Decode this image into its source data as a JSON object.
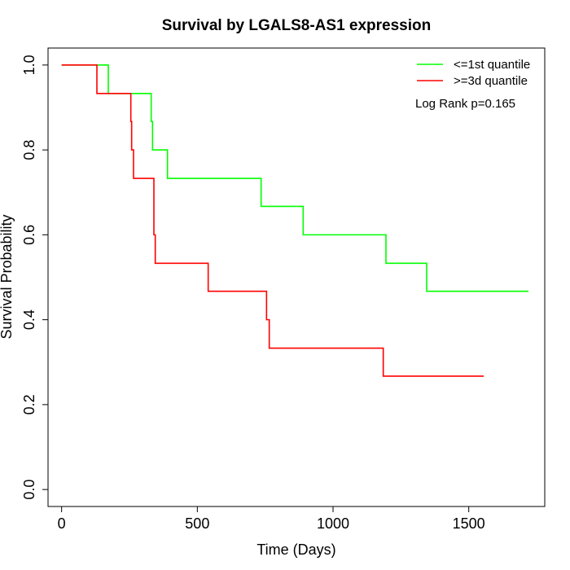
{
  "chart_data": {
    "type": "line",
    "title": "Survival by LGALS8-AS1 expression",
    "xlabel": "Time (Days)",
    "ylabel": "Survival Probability",
    "xlim": [
      -50,
      1780
    ],
    "ylim": [
      -0.04,
      1.04
    ],
    "x_ticks": [
      0,
      500,
      1000,
      1500
    ],
    "x_tick_labels": [
      "0",
      "500",
      "1000",
      "1500"
    ],
    "y_ticks": [
      0.0,
      0.2,
      0.4,
      0.6,
      0.8,
      1.0
    ],
    "y_tick_labels": [
      "0.0",
      "0.2",
      "0.4",
      "0.6",
      "0.8",
      "1.0"
    ],
    "grid": false,
    "legend_position": "top-right",
    "annotation": "Log Rank p=0.165",
    "series": [
      {
        "name": "<=1st quantile",
        "color": "#00ff00",
        "steps": [
          [
            0,
            1.0
          ],
          [
            172,
            0.933
          ],
          [
            330,
            0.867
          ],
          [
            335,
            0.8
          ],
          [
            390,
            0.733
          ],
          [
            735,
            0.667
          ],
          [
            890,
            0.6
          ],
          [
            1195,
            0.533
          ],
          [
            1345,
            0.467
          ],
          [
            1720,
            0.467
          ]
        ]
      },
      {
        "name": ">=3d quantile",
        "color": "#ff0000",
        "steps": [
          [
            0,
            1.0
          ],
          [
            130,
            0.933
          ],
          [
            255,
            0.867
          ],
          [
            258,
            0.8
          ],
          [
            265,
            0.733
          ],
          [
            340,
            0.6
          ],
          [
            345,
            0.533
          ],
          [
            540,
            0.467
          ],
          [
            755,
            0.4
          ],
          [
            765,
            0.333
          ],
          [
            1185,
            0.267
          ],
          [
            1555,
            0.267
          ]
        ]
      }
    ]
  }
}
